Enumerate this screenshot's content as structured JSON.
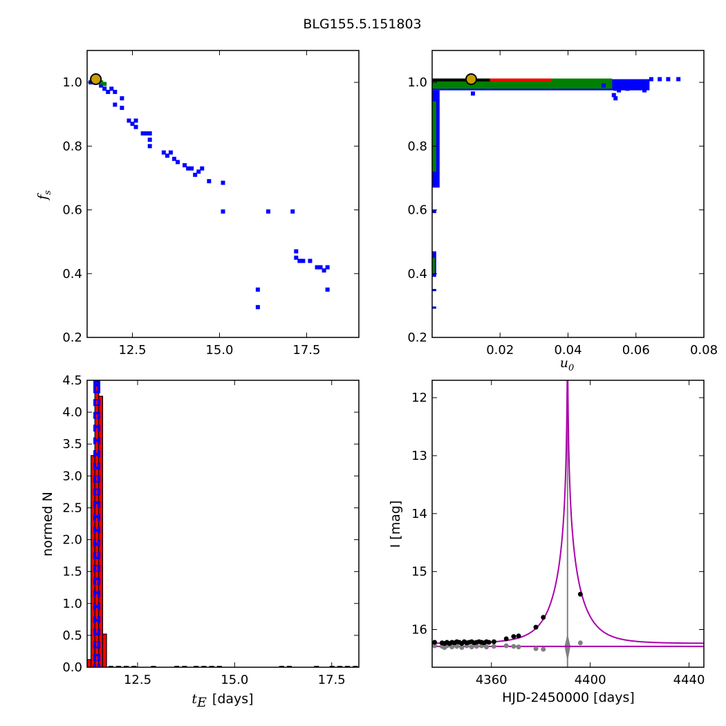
{
  "figure": {
    "title": "BLG155.5.151803"
  },
  "chart_data": [
    {
      "type": "scatter",
      "panel": "top-left",
      "title": "",
      "xlabel": "",
      "ylabel": "f_s",
      "ylabel_base": "f",
      "ylabel_sub": "s",
      "xlim": [
        11.2,
        19.0
      ],
      "ylim": [
        0.2,
        1.1
      ],
      "xticks": [
        12.5,
        15.0,
        17.5
      ],
      "xtick_labels": [
        "12.5",
        "15.0",
        "17.5"
      ],
      "yticks": [
        0.2,
        0.4,
        0.6,
        0.8,
        1.0
      ],
      "ytick_labels": [
        "0.2",
        "0.4",
        "0.6",
        "0.8",
        "1.0"
      ],
      "series": [
        {
          "color": "#0000ff",
          "points": [
            [
              11.3,
              1.0
            ],
            [
              11.4,
              1.0
            ],
            [
              11.6,
              0.99
            ],
            [
              11.7,
              0.98
            ],
            [
              11.8,
              0.97
            ],
            [
              11.9,
              0.98
            ],
            [
              12.0,
              0.97
            ],
            [
              12.0,
              0.93
            ],
            [
              12.2,
              0.95
            ],
            [
              12.2,
              0.92
            ],
            [
              12.4,
              0.88
            ],
            [
              12.5,
              0.87
            ],
            [
              12.6,
              0.88
            ],
            [
              12.6,
              0.86
            ],
            [
              12.8,
              0.84
            ],
            [
              12.9,
              0.84
            ],
            [
              13.0,
              0.84
            ],
            [
              13.0,
              0.82
            ],
            [
              13.0,
              0.8
            ],
            [
              13.4,
              0.78
            ],
            [
              13.5,
              0.77
            ],
            [
              13.6,
              0.78
            ],
            [
              13.7,
              0.76
            ],
            [
              13.8,
              0.75
            ],
            [
              14.0,
              0.74
            ],
            [
              14.1,
              0.73
            ],
            [
              14.2,
              0.73
            ],
            [
              14.3,
              0.71
            ],
            [
              14.4,
              0.72
            ],
            [
              14.5,
              0.73
            ],
            [
              14.7,
              0.69
            ],
            [
              15.1,
              0.685
            ],
            [
              15.1,
              0.595
            ],
            [
              16.1,
              0.35
            ],
            [
              16.1,
              0.295
            ],
            [
              16.4,
              0.595
            ],
            [
              17.1,
              0.595
            ],
            [
              17.2,
              0.47
            ],
            [
              17.2,
              0.45
            ],
            [
              17.3,
              0.44
            ],
            [
              17.4,
              0.44
            ],
            [
              17.6,
              0.44
            ],
            [
              17.8,
              0.42
            ],
            [
              17.9,
              0.42
            ],
            [
              18.0,
              0.41
            ],
            [
              18.1,
              0.42
            ],
            [
              18.1,
              0.35
            ]
          ]
        },
        {
          "color": "#008000",
          "points": [
            [
              11.4,
              1.005
            ],
            [
              11.6,
              1.0
            ],
            [
              11.7,
              0.995
            ]
          ]
        },
        {
          "color": "#ff0000",
          "points": [
            [
              11.45,
              1.0
            ]
          ]
        },
        {
          "color": "#000000",
          "points": [
            [
              11.42,
              1.005
            ]
          ]
        }
      ],
      "best_fit": {
        "x": 11.45,
        "y": 1.01,
        "color": "#c8a000"
      }
    },
    {
      "type": "scatter",
      "panel": "top-right",
      "title": "",
      "xlabel": "u_0",
      "xlabel_base": "u",
      "xlabel_sub": "0",
      "ylabel": "",
      "xlim": [
        0.0,
        0.08
      ],
      "ylim": [
        0.2,
        1.1
      ],
      "xticks": [
        0.02,
        0.04,
        0.06,
        0.08
      ],
      "xtick_labels": [
        "0.02",
        "0.04",
        "0.06",
        "0.08"
      ],
      "yticks": [
        0.2,
        0.4,
        0.6,
        0.8,
        1.0
      ],
      "ytick_labels": [
        "0.2",
        "0.4",
        "0.6",
        "0.8",
        "1.0"
      ],
      "bands": [
        {
          "color": "#0000ff",
          "x0": 0.0,
          "x1": 0.064,
          "y0": 0.975,
          "y1": 1.01
        },
        {
          "color": "#008000",
          "x0": 0.0,
          "x1": 0.053,
          "y0": 0.98,
          "y1": 1.012
        },
        {
          "color": "#000000",
          "x0": 0.0,
          "x1": 0.017,
          "y0": 1.003,
          "y1": 1.012
        },
        {
          "color": "#ff0000",
          "x0": 0.017,
          "x1": 0.035,
          "y0": 1.003,
          "y1": 1.012
        },
        {
          "color": "#0000ff",
          "x0": 0.0,
          "x1": 0.0022,
          "y0": 0.67,
          "y1": 0.975
        },
        {
          "color": "#008000",
          "x0": 0.0,
          "x1": 0.0012,
          "y0": 0.72,
          "y1": 0.94
        },
        {
          "color": "#0000ff",
          "x0": 0.0,
          "x1": 0.0012,
          "y0": 0.39,
          "y1": 0.47
        },
        {
          "color": "#008000",
          "x0": 0.0,
          "x1": 0.0008,
          "y0": 0.4,
          "y1": 0.45
        },
        {
          "color": "#0000ff",
          "x0": 0.0,
          "x1": 0.0012,
          "y0": 0.59,
          "y1": 0.6
        },
        {
          "color": "#0000ff",
          "x0": 0.0,
          "x1": 0.0012,
          "y0": 0.345,
          "y1": 0.352
        },
        {
          "color": "#0000ff",
          "x0": 0.0,
          "x1": 0.0012,
          "y0": 0.29,
          "y1": 0.297
        }
      ],
      "series": [
        {
          "color": "#0000ff",
          "points": [
            [
              0.012,
              0.965
            ],
            [
              0.0505,
              0.99
            ],
            [
              0.054,
              0.98
            ],
            [
              0.0535,
              0.96
            ],
            [
              0.055,
              0.975
            ],
            [
              0.054,
              0.95
            ],
            [
              0.056,
              0.99
            ],
            [
              0.0575,
              0.98
            ],
            [
              0.06,
              0.99
            ],
            [
              0.0625,
              0.975
            ],
            [
              0.0645,
              1.01
            ],
            [
              0.067,
              1.01
            ],
            [
              0.0695,
              1.01
            ],
            [
              0.0725,
              1.01
            ]
          ]
        }
      ],
      "best_fit": {
        "x": 0.0115,
        "y": 1.01,
        "color": "#c8a000"
      }
    },
    {
      "type": "bar",
      "panel": "bottom-left",
      "title": "",
      "xlabel": "t_E  [days]",
      "xlabel_base": "t",
      "xlabel_sub": "E",
      "xlabel_unit": "[days]",
      "ylabel": "normed N",
      "xlim": [
        11.2,
        18.2
      ],
      "ylim": [
        0.0,
        4.5
      ],
      "xticks": [
        12.5,
        15.0,
        17.5
      ],
      "xtick_labels": [
        "12.5",
        "15.0",
        "17.5"
      ],
      "yticks": [
        0.0,
        0.5,
        1.0,
        1.5,
        2.0,
        2.5,
        3.0,
        3.5,
        4.0,
        4.5
      ],
      "ytick_labels": [
        "0.0",
        "0.5",
        "1.0",
        "1.5",
        "2.0",
        "2.5",
        "3.0",
        "3.5",
        "4.0",
        "4.5"
      ],
      "bins": [
        {
          "x0": 11.2,
          "x1": 11.3,
          "value": 0.12
        },
        {
          "x0": 11.3,
          "x1": 11.4,
          "value": 3.32
        },
        {
          "x0": 11.4,
          "x1": 11.5,
          "value": 4.45
        },
        {
          "x0": 11.5,
          "x1": 11.6,
          "value": 4.25
        },
        {
          "x0": 11.6,
          "x1": 11.7,
          "value": 0.52
        }
      ],
      "bar_color": "#ff0000",
      "tail_ticks": [
        11.8,
        12.0,
        12.2,
        12.4,
        12.9,
        13.5,
        13.7,
        14.0,
        14.2,
        14.4,
        14.6,
        16.2,
        16.4,
        17.1,
        17.5,
        17.7,
        17.9,
        18.1
      ],
      "dashed_line": {
        "color": "#0000ff",
        "x": 11.45,
        "y_values": [
          0.0,
          0.15,
          0.35,
          0.55,
          0.75,
          0.95,
          1.15,
          1.35,
          1.55,
          1.75,
          1.95,
          2.15,
          2.35,
          2.55,
          2.75,
          2.95,
          3.15,
          3.35,
          3.55,
          3.75,
          3.95,
          4.15,
          4.35,
          4.45
        ]
      }
    },
    {
      "type": "line",
      "panel": "bottom-right",
      "title": "",
      "xlabel": "HJD-2450000 [days]",
      "ylabel": "I [mag]",
      "xlim": [
        4336,
        4446
      ],
      "ylim": [
        16.65,
        11.7
      ],
      "y_inverted": true,
      "xticks": [
        4360,
        4400,
        4440
      ],
      "xtick_labels": [
        "4360",
        "4400",
        "4440"
      ],
      "yticks": [
        12,
        13,
        14,
        15,
        16
      ],
      "ytick_labels": [
        "12",
        "13",
        "14",
        "15",
        "16"
      ],
      "model": {
        "color": "#aa00aa",
        "t0": 4390.8,
        "tE": 11.45,
        "u0": 0.0115,
        "fs": 1.01,
        "base_mag": 16.24,
        "t_start": 4336,
        "t_end": 4446
      },
      "baseline": {
        "color": "#aa00aa",
        "mag": 16.29
      },
      "data_points": {
        "color": "#000000",
        "points": [
          [
            4337,
            16.22
          ],
          [
            4340,
            16.23
          ],
          [
            4341,
            16.24
          ],
          [
            4342,
            16.22
          ],
          [
            4343,
            16.24
          ],
          [
            4344,
            16.22
          ],
          [
            4345,
            16.23
          ],
          [
            4346,
            16.21
          ],
          [
            4347,
            16.22
          ],
          [
            4348,
            16.24
          ],
          [
            4349,
            16.21
          ],
          [
            4350,
            16.23
          ],
          [
            4351,
            16.22
          ],
          [
            4352,
            16.21
          ],
          [
            4353,
            16.23
          ],
          [
            4354,
            16.22
          ],
          [
            4355,
            16.21
          ],
          [
            4356,
            16.22
          ],
          [
            4357,
            16.23
          ],
          [
            4358,
            16.21
          ],
          [
            4359,
            16.22
          ],
          [
            4361,
            16.21
          ],
          [
            4366,
            16.16
          ],
          [
            4369,
            16.12
          ],
          [
            4371,
            16.11
          ],
          [
            4378,
            15.96
          ],
          [
            4381,
            15.79
          ],
          [
            4396,
            15.39
          ]
        ]
      },
      "residual_points": {
        "color": "#808080",
        "points": [
          [
            4337,
            16.28
          ],
          [
            4340,
            16.29
          ],
          [
            4341,
            16.31
          ],
          [
            4342,
            16.28
          ],
          [
            4344,
            16.3
          ],
          [
            4346,
            16.29
          ],
          [
            4348,
            16.31
          ],
          [
            4350,
            16.28
          ],
          [
            4352,
            16.3
          ],
          [
            4354,
            16.29
          ],
          [
            4356,
            16.28
          ],
          [
            4358,
            16.3
          ],
          [
            4361,
            16.29
          ],
          [
            4366,
            16.28
          ],
          [
            4369,
            16.29
          ],
          [
            4371,
            16.3
          ],
          [
            4378,
            16.33
          ],
          [
            4381,
            16.34
          ],
          [
            4396,
            16.23
          ]
        ]
      },
      "residual_spike": {
        "color": "#808080",
        "t": 4390.8,
        "up_mag": 11.7,
        "down_mag": 16.65,
        "bump_up": 16.07,
        "bump_down": 16.55
      }
    }
  ]
}
